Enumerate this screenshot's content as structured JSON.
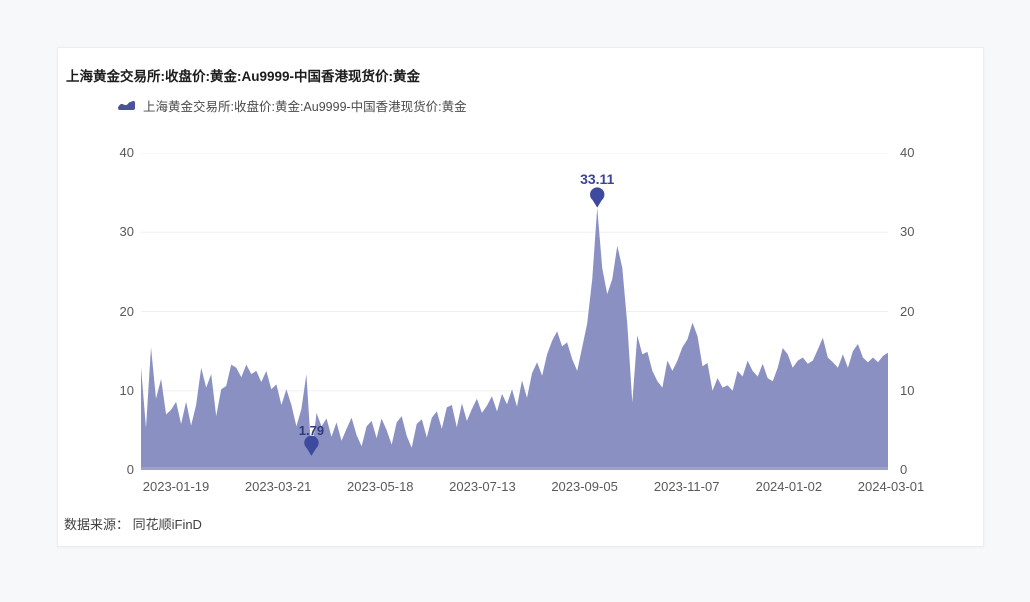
{
  "title": "上海黄金交易所:收盘价:黄金:Au9999-中国香港现货价:黄金",
  "legend": {
    "label": "上海黄金交易所:收盘价:黄金:Au9999-中国香港现货价:黄金",
    "swatch_color": "#4a5399"
  },
  "source": "数据来源：  同花顺iFinD",
  "colors": {
    "area_fill": "#8a90c1",
    "baseline": "#9ca1c5",
    "gridline": "#f0f0f2",
    "marker": "#3e4a9e",
    "axis_text": "#595959"
  },
  "chart_data": {
    "type": "area",
    "title": "上海黄金交易所:收盘价:黄金:Au9999-中国香港现货价:黄金",
    "series_name": "上海黄金交易所:收盘价:黄金:Au9999-中国香港现货价:黄金",
    "x_tick_labels": [
      "2023-01-19",
      "2023-03-21",
      "2023-05-18",
      "2023-07-13",
      "2023-09-05",
      "2023-11-07",
      "2024-01-02",
      "2024-03-01"
    ],
    "y_ticks": [
      0,
      10,
      20,
      30,
      40
    ],
    "ylim": [
      0,
      40
    ],
    "y_axis_sides": [
      "left",
      "right"
    ],
    "grid": true,
    "legend_position": "top",
    "series": [
      {
        "name": "上海黄金交易所:收盘价:黄金:Au9999-中国香港现货价:黄金",
        "color": "#8a90c1",
        "values": [
          13.0,
          5.3,
          15.5,
          9.0,
          11.5,
          7.0,
          7.6,
          8.6,
          5.8,
          8.6,
          5.6,
          8.2,
          12.9,
          10.4,
          12.1,
          6.8,
          10.2,
          10.6,
          13.3,
          12.9,
          11.7,
          13.3,
          12.1,
          12.5,
          11.1,
          12.5,
          10.2,
          10.8,
          8.2,
          10.2,
          8.2,
          5.5,
          7.7,
          12.1,
          1.79,
          7.2,
          5.5,
          6.5,
          4.2,
          6.0,
          3.7,
          5.2,
          6.6,
          4.4,
          3.0,
          5.5,
          6.2,
          4.0,
          6.5,
          5.0,
          3.2,
          6.0,
          6.8,
          4.3,
          2.8,
          5.8,
          6.4,
          4.1,
          6.6,
          7.4,
          5.2,
          7.9,
          8.2,
          5.4,
          8.4,
          6.2,
          7.7,
          9.0,
          7.2,
          8.1,
          9.3,
          7.4,
          9.6,
          8.3,
          10.2,
          8.0,
          11.3,
          9.1,
          12.2,
          13.6,
          11.9,
          14.6,
          16.3,
          17.5,
          15.6,
          16.1,
          14.0,
          12.5,
          15.5,
          18.5,
          24.0,
          33.11,
          25.5,
          22.2,
          24.1,
          28.3,
          25.5,
          18.4,
          8.5,
          17.0,
          14.6,
          14.9,
          12.5,
          11.2,
          10.4,
          13.8,
          12.5,
          13.8,
          15.5,
          16.5,
          18.6,
          16.9,
          13.1,
          13.5,
          10.0,
          11.6,
          10.4,
          10.7,
          10.0,
          12.5,
          11.8,
          13.8,
          12.5,
          11.8,
          13.4,
          11.6,
          11.2,
          12.9,
          15.4,
          14.6,
          12.9,
          13.8,
          14.2,
          13.4,
          13.8,
          15.2,
          16.7,
          14.2,
          13.6,
          12.9,
          14.6,
          12.9,
          15.0,
          15.9,
          14.2,
          13.6,
          14.2,
          13.6,
          14.4,
          14.8
        ]
      }
    ],
    "annotations": [
      {
        "label": "33.11",
        "value": 33.11,
        "index": 91,
        "kind": "peak"
      },
      {
        "label": "1.79",
        "value": 1.79,
        "index": 34,
        "kind": "low"
      }
    ]
  }
}
